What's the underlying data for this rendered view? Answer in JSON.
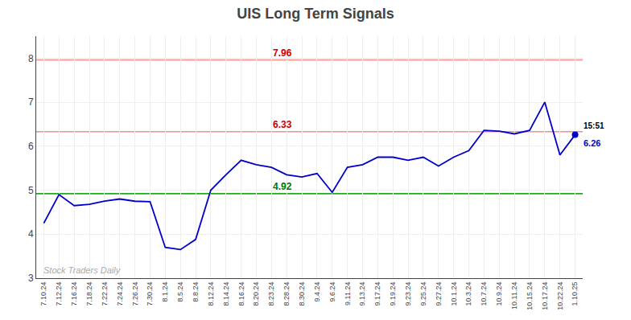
{
  "chart_data": {
    "type": "line",
    "title": "UIS Long Term Signals",
    "categories": [
      "7.10.24",
      "7.12.24",
      "7.16.24",
      "7.18.24",
      "7.22.24",
      "7.24.24",
      "7.26.24",
      "7.30.24",
      "8.1.24",
      "8.5.24",
      "8.8.24",
      "8.12.24",
      "8.14.24",
      "8.16.24",
      "8.20.24",
      "8.23.24",
      "8.28.24",
      "8.30.24",
      "9.4.24",
      "9.6.24",
      "9.11.24",
      "9.13.24",
      "9.17.24",
      "9.19.24",
      "9.23.24",
      "9.25.24",
      "9.27.24",
      "10.1.24",
      "10.3.24",
      "10.7.24",
      "10.9.24",
      "10.11.24",
      "10.15.24",
      "10.17.24",
      "10.22.24",
      "1.10.25"
    ],
    "values": [
      4.25,
      4.9,
      4.65,
      4.68,
      4.75,
      4.8,
      4.75,
      4.74,
      3.7,
      3.65,
      3.88,
      5.0,
      5.35,
      5.68,
      5.58,
      5.52,
      5.35,
      5.3,
      5.38,
      4.95,
      5.52,
      5.58,
      5.75,
      5.75,
      5.68,
      5.75,
      5.55,
      5.75,
      5.9,
      6.36,
      6.34,
      6.28,
      6.36,
      7.0,
      5.8,
      6.26
    ],
    "color": "#0000cc",
    "hlines": [
      {
        "value": 7.96,
        "label": "7.96",
        "color": "#ff8888",
        "label_color": "#cc0000"
      },
      {
        "value": 6.33,
        "label": "6.33",
        "color": "#ff8888",
        "label_color": "#cc0000"
      },
      {
        "value": 4.92,
        "label": "4.92",
        "color": "#22aa22",
        "label_color": "#007700"
      }
    ],
    "annotations": [
      {
        "text": "15:51",
        "color": "#000000"
      },
      {
        "text": "6.26",
        "color": "#0000cc"
      },
      {
        "text": "Stock Traders Daily",
        "color": "#aaaaaa"
      }
    ],
    "ylim": [
      3.0,
      8.5
    ],
    "yticks": [
      3,
      4,
      5,
      6,
      7,
      8
    ],
    "grid": true
  }
}
